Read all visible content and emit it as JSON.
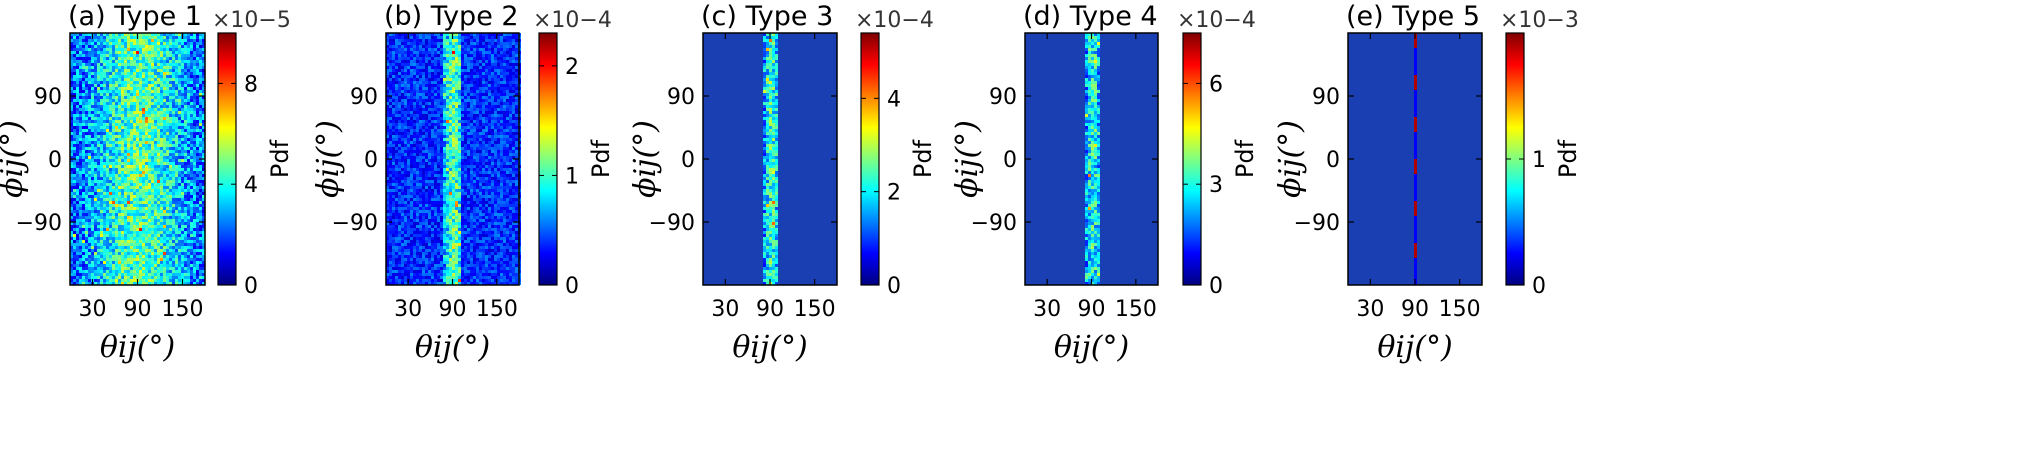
{
  "colormap": [
    "#00007f",
    "#0000ff",
    "#0080ff",
    "#00ffff",
    "#80ff80",
    "#ffff00",
    "#ff8000",
    "#ff0000",
    "#7f0000"
  ],
  "background_color": "#1a3fb3",
  "chart_data": [
    {
      "type": "heatmap",
      "title": "(a)  Type 1",
      "xlabel": "θij(°)",
      "ylabel": "ϕij(°)",
      "xlim": [
        0,
        180
      ],
      "ylim": [
        -180,
        180
      ],
      "xticks": [
        30,
        90,
        150
      ],
      "xtick_labels": [
        "30",
        "90",
        "150"
      ],
      "yticks": [
        90,
        0,
        -90
      ],
      "ytick_labels": [
        "90",
        "0",
        "−90"
      ],
      "colorbar_label": "Pdf",
      "colorbar_max": 10,
      "colorbar_ticks": [
        0,
        4,
        8
      ],
      "colorbar_tick_labels": [
        "0",
        "4",
        "8"
      ],
      "colorbar_multiplier": "×10−5",
      "distribution": {
        "band_theta": [
          0,
          180
        ],
        "band_center": 90,
        "band_sigma": 55,
        "peak_level": 0.45,
        "background_level": 0.18
      }
    },
    {
      "type": "heatmap",
      "title": "(b)  Type 2",
      "xlabel": "θij(°)",
      "ylabel": "ϕij(°)",
      "xlim": [
        0,
        180
      ],
      "ylim": [
        -180,
        180
      ],
      "xticks": [
        30,
        90,
        150
      ],
      "xtick_labels": [
        "30",
        "90",
        "150"
      ],
      "yticks": [
        90,
        0,
        -90
      ],
      "ytick_labels": [
        "90",
        "0",
        "−90"
      ],
      "colorbar_label": "Pdf",
      "colorbar_max": 2.3,
      "colorbar_ticks": [
        0,
        1,
        2
      ],
      "colorbar_tick_labels": [
        "0",
        "1",
        "2"
      ],
      "colorbar_multiplier": "×10−4",
      "distribution": {
        "band_theta": [
          75,
          100
        ],
        "band_center": 90,
        "band_sigma": 12,
        "peak_level": 0.45,
        "background_level": 0.17
      }
    },
    {
      "type": "heatmap",
      "title": "(c)  Type 3",
      "xlabel": "θij(°)",
      "ylabel": "ϕij(°)",
      "xlim": [
        0,
        180
      ],
      "ylim": [
        -180,
        180
      ],
      "xticks": [
        30,
        90,
        150
      ],
      "xtick_labels": [
        "30",
        "90",
        "150"
      ],
      "yticks": [
        90,
        0,
        -90
      ],
      "ytick_labels": [
        "90",
        "0",
        "−90"
      ],
      "colorbar_label": "Pdf",
      "colorbar_max": 5.4,
      "colorbar_ticks": [
        0,
        2,
        4
      ],
      "colorbar_tick_labels": [
        "0",
        "2",
        "4"
      ],
      "colorbar_multiplier": "×10−4",
      "distribution": {
        "band_theta": [
          80,
          100
        ],
        "band_center": 90,
        "band_sigma": 10,
        "peak_level": 0.42,
        "background_level": 0.12
      }
    },
    {
      "type": "heatmap",
      "title": "(d)  Type 4",
      "xlabel": "θij(°)",
      "ylabel": "ϕij(°)",
      "xlim": [
        0,
        180
      ],
      "ylim": [
        -180,
        180
      ],
      "xticks": [
        30,
        90,
        150
      ],
      "xtick_labels": [
        "30",
        "90",
        "150"
      ],
      "yticks": [
        90,
        0,
        -90
      ],
      "ytick_labels": [
        "90",
        "0",
        "−90"
      ],
      "colorbar_label": "Pdf",
      "colorbar_max": 7.5,
      "colorbar_ticks": [
        0,
        3,
        6
      ],
      "colorbar_tick_labels": [
        "0",
        "3",
        "6"
      ],
      "colorbar_multiplier": "×10−4",
      "distribution": {
        "band_theta": [
          80,
          100
        ],
        "band_center": 90,
        "band_sigma": 10,
        "peak_level": 0.4,
        "background_level": 0.12
      }
    },
    {
      "type": "heatmap",
      "title": "(e)  Type 5",
      "xlabel": "θij(°)",
      "ylabel": "ϕij(°)",
      "xlim": [
        0,
        180
      ],
      "ylim": [
        -180,
        180
      ],
      "xticks": [
        30,
        90,
        150
      ],
      "xtick_labels": [
        "30",
        "90",
        "150"
      ],
      "yticks": [
        90,
        0,
        -90
      ],
      "ytick_labels": [
        "90",
        "0",
        "−90"
      ],
      "colorbar_label": "Pdf",
      "colorbar_max": 2.0,
      "colorbar_ticks": [
        0,
        1
      ],
      "colorbar_tick_labels": [
        "0",
        "1"
      ],
      "colorbar_multiplier": "×10−3",
      "distribution": {
        "band_theta": [
          88,
          92
        ],
        "band_center": 90,
        "band_sigma": 2,
        "peak_level": 0.9,
        "background_level": 0.12
      }
    }
  ]
}
